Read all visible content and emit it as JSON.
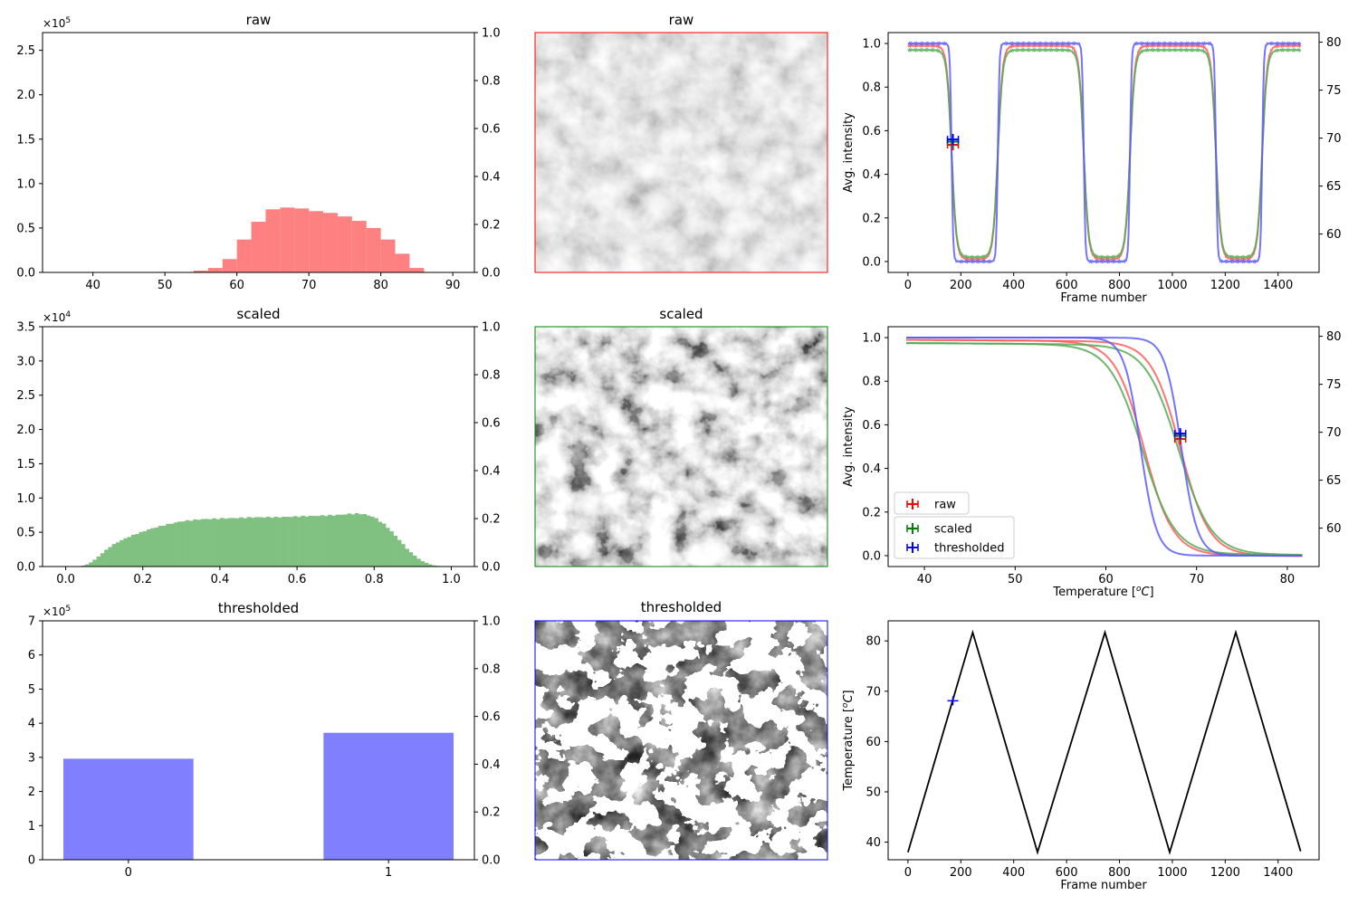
{
  "chart_data": [
    {
      "id": "hist-raw",
      "type": "bar",
      "title": "raw",
      "color": "#ff8080",
      "ylim": [
        0,
        2.7
      ],
      "y_multiplier_label": "×10^5",
      "xlim": [
        33,
        93
      ],
      "xticks": [
        40,
        50,
        60,
        70,
        80,
        90
      ],
      "yticks": [
        0.0,
        0.5,
        1.0,
        1.5,
        2.0,
        2.5
      ],
      "right_ylim": [
        0,
        1
      ],
      "right_yticks": [
        0.0,
        0.2,
        0.4,
        0.6,
        0.8,
        1.0
      ],
      "bin_width": 2,
      "bins": [
        [
          52,
          0.002
        ],
        [
          54,
          0.02
        ],
        [
          56,
          0.05
        ],
        [
          58,
          0.15
        ],
        [
          60,
          0.37
        ],
        [
          62,
          0.57
        ],
        [
          64,
          0.71
        ],
        [
          66,
          0.73
        ],
        [
          68,
          0.72
        ],
        [
          70,
          0.69
        ],
        [
          72,
          0.67
        ],
        [
          74,
          0.63
        ],
        [
          76,
          0.58
        ],
        [
          78,
          0.5
        ],
        [
          80,
          0.37
        ],
        [
          82,
          0.21
        ],
        [
          84,
          0.05
        ]
      ]
    },
    {
      "id": "hist-scaled",
      "type": "bar",
      "title": "scaled",
      "color": "#80c080",
      "ylim": [
        0,
        3.5
      ],
      "y_multiplier_label": "×10^4",
      "xlim": [
        -0.06,
        1.06
      ],
      "xticks": [
        0.0,
        0.2,
        0.4,
        0.6,
        0.8,
        1.0
      ],
      "yticks": [
        0.0,
        0.5,
        1.0,
        1.5,
        2.0,
        2.5,
        3.0,
        3.5
      ],
      "right_ylim": [
        0,
        1
      ],
      "right_yticks": [
        0.0,
        0.2,
        0.4,
        0.6,
        0.8,
        1.0
      ],
      "bin_width": 0.01,
      "envelope": [
        [
          0.0,
          0.0
        ],
        [
          0.04,
          0.005
        ],
        [
          0.06,
          0.04
        ],
        [
          0.08,
          0.12
        ],
        [
          0.1,
          0.22
        ],
        [
          0.12,
          0.31
        ],
        [
          0.15,
          0.4
        ],
        [
          0.18,
          0.47
        ],
        [
          0.22,
          0.55
        ],
        [
          0.26,
          0.61
        ],
        [
          0.3,
          0.66
        ],
        [
          0.35,
          0.69
        ],
        [
          0.4,
          0.7
        ],
        [
          0.45,
          0.71
        ],
        [
          0.5,
          0.72
        ],
        [
          0.55,
          0.72
        ],
        [
          0.6,
          0.73
        ],
        [
          0.65,
          0.74
        ],
        [
          0.7,
          0.75
        ],
        [
          0.74,
          0.77
        ],
        [
          0.77,
          0.77
        ],
        [
          0.8,
          0.72
        ],
        [
          0.83,
          0.6
        ],
        [
          0.86,
          0.42
        ],
        [
          0.89,
          0.23
        ],
        [
          0.92,
          0.09
        ],
        [
          0.95,
          0.02
        ],
        [
          0.98,
          0.0
        ]
      ]
    },
    {
      "id": "hist-thresholded",
      "type": "bar",
      "title": "thresholded",
      "color": "#8080ff",
      "ylim": [
        0,
        7
      ],
      "y_multiplier_label": "×10^5",
      "xlim": [
        -0.33,
        1.33
      ],
      "xticks": [
        0,
        1
      ],
      "yticks": [
        0,
        1,
        2,
        3,
        4,
        5,
        6,
        7
      ],
      "right_ylim": [
        0,
        1
      ],
      "right_yticks": [
        0.0,
        0.2,
        0.4,
        0.6,
        0.8,
        1.0
      ],
      "bin_width": 0.5,
      "bins": [
        [
          0,
          2.96
        ],
        [
          1,
          3.72
        ]
      ]
    },
    {
      "id": "line-frame",
      "type": "line",
      "title": "",
      "xlabel": "Frame number",
      "ylabel": "Avg. intensity",
      "xlim": [
        -75,
        1555
      ],
      "xticks": [
        0,
        200,
        400,
        600,
        800,
        1000,
        1200,
        1400
      ],
      "ylim": [
        -0.05,
        1.05
      ],
      "yticks": [
        0.0,
        0.2,
        0.4,
        0.6,
        0.8,
        1.0
      ],
      "right_ylim": [
        56,
        81
      ],
      "right_yticks": [
        60,
        65,
        70,
        75,
        80
      ],
      "series": [
        {
          "name": "raw",
          "color": "#ff5a5a",
          "high": 0.99,
          "low": 0.01,
          "steep": 9
        },
        {
          "name": "scaled",
          "color": "#55aa55",
          "high": 0.97,
          "low": 0.02,
          "steep": 9
        },
        {
          "name": "thresholded",
          "color": "#5a5aff",
          "high": 1.0,
          "low": 0.0,
          "steep": 3
        }
      ],
      "transitions": [
        [
          165,
          -1
        ],
        [
          340,
          1
        ],
        [
          665,
          -1
        ],
        [
          840,
          1
        ],
        [
          1165,
          -1
        ],
        [
          1340,
          1
        ]
      ],
      "markers": [
        {
          "series": "raw",
          "x": 170,
          "y": 0.535
        },
        {
          "series": "scaled",
          "x": 170,
          "y": 0.55
        },
        {
          "series": "thresholded",
          "x": 170,
          "y": 0.56
        }
      ]
    },
    {
      "id": "line-temp",
      "type": "line",
      "title": "",
      "xlabel": "Temperature [$^oC$]",
      "ylabel": "Avg. intensity",
      "xlim": [
        36,
        83.5
      ],
      "xticks": [
        40,
        50,
        60,
        70,
        80
      ],
      "ylim": [
        -0.05,
        1.05
      ],
      "yticks": [
        0.0,
        0.2,
        0.4,
        0.6,
        0.8,
        1.0
      ],
      "right_ylim": [
        56,
        81
      ],
      "right_yticks": [
        60,
        65,
        70,
        75,
        80
      ],
      "legend": {
        "position": "lower-left",
        "entries": [
          "raw",
          "scaled",
          "thresholded"
        ]
      },
      "series": [
        {
          "name": "raw",
          "color": "#ff5a5a",
          "high": 0.99,
          "low": 0.01,
          "mid_heat": 68.2,
          "mid_cool": 64.2,
          "width": 1.6
        },
        {
          "name": "scaled",
          "color": "#55aa55",
          "high": 0.975,
          "low": 0.015,
          "mid_heat": 68.0,
          "mid_cool": 64.0,
          "width": 1.8
        },
        {
          "name": "thresholded",
          "color": "#5a5aff",
          "high": 1.0,
          "low": 0.0,
          "mid_heat": 68.3,
          "mid_cool": 63.8,
          "width": 0.9
        }
      ],
      "markers": [
        {
          "series": "raw",
          "x": 68.2,
          "y": 0.535
        },
        {
          "series": "scaled",
          "x": 68.2,
          "y": 0.55
        },
        {
          "series": "thresholded",
          "x": 68.2,
          "y": 0.56
        }
      ]
    },
    {
      "id": "line-temperature-frame",
      "type": "line",
      "title": "",
      "xlabel": "Frame number",
      "ylabel": "Temperature [$^oC$]",
      "xlim": [
        -75,
        1555
      ],
      "xticks": [
        0,
        200,
        400,
        600,
        800,
        1000,
        1200,
        1400
      ],
      "ylim": [
        36.5,
        84
      ],
      "yticks": [
        40,
        50,
        60,
        70,
        80
      ],
      "series": [
        {
          "name": "temperature",
          "color": "#000000",
          "x": [
            0,
            245,
            490,
            745,
            990,
            1240,
            1485
          ],
          "y": [
            38,
            81.7,
            38,
            81.7,
            38,
            81.7,
            38.2
          ]
        }
      ],
      "markers": [
        {
          "series": "temperature",
          "x": 170,
          "y": 68.1,
          "color": "#0000ff"
        }
      ]
    }
  ],
  "images": [
    {
      "id": "img-raw",
      "title": "raw",
      "border_color": "#ff0000"
    },
    {
      "id": "img-scaled",
      "title": "scaled",
      "border_color": "#008000"
    },
    {
      "id": "img-thresholded",
      "title": "thresholded",
      "border_color": "#0000ff"
    }
  ]
}
